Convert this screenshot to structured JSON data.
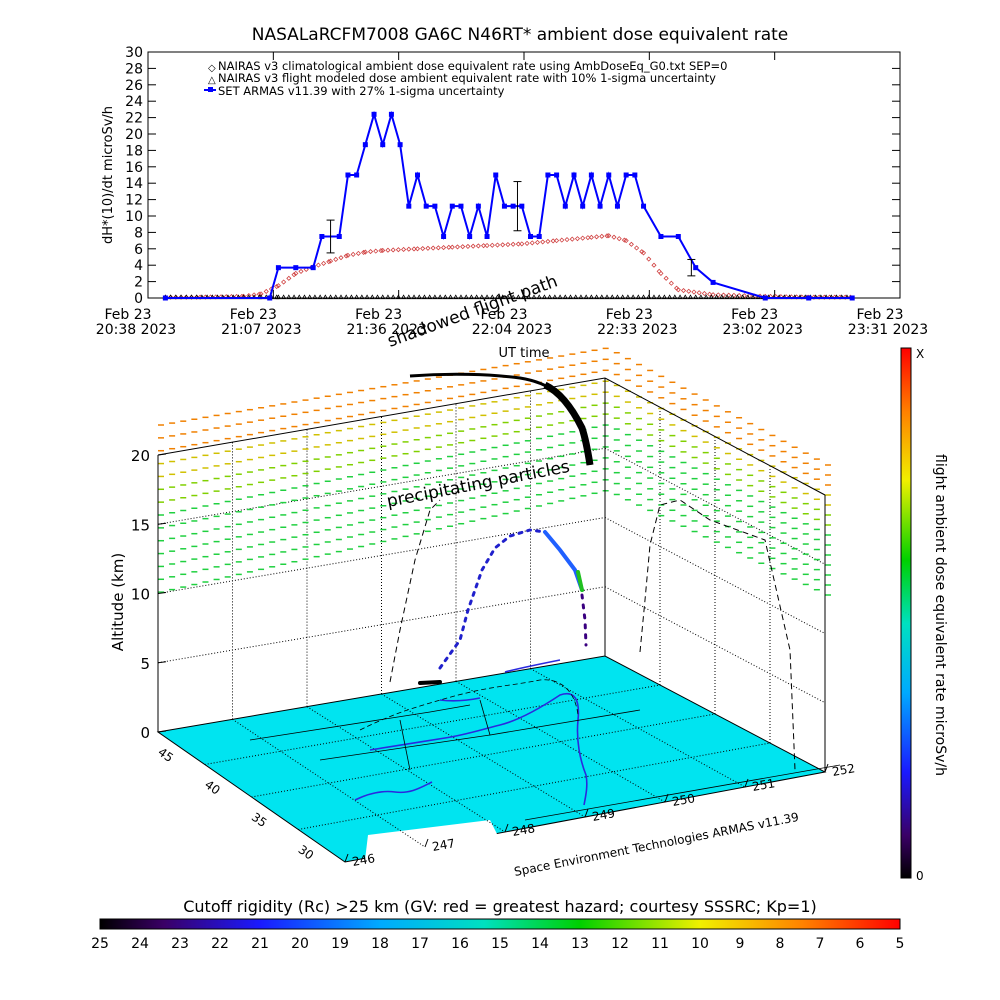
{
  "title": "NASALaRCFM7008  GA6C N46RT* ambient dose equivalent rate",
  "chart_data": [
    {
      "type": "line",
      "ylabel": "dH*(10)/dt microSv/h",
      "xlabel": "UT time",
      "ylim": [
        0,
        30
      ],
      "yticks": [
        "0",
        "2",
        "4",
        "6",
        "8",
        "10",
        "12",
        "14",
        "16",
        "18",
        "20",
        "22",
        "24",
        "26",
        "28",
        "30"
      ],
      "xticks": [
        {
          "date": "Feb 23",
          "time": "20:38 2023"
        },
        {
          "date": "Feb 23",
          "time": "21:07 2023"
        },
        {
          "date": "Feb 23",
          "time": "21:36 2023"
        },
        {
          "date": "Feb 23",
          "time": "22:04 2023"
        },
        {
          "date": "Feb 23",
          "time": "22:33 2023"
        },
        {
          "date": "Feb 23",
          "time": "23:02 2023"
        },
        {
          "date": "Feb 23",
          "time": "23:31 2023"
        }
      ],
      "legend_position": "top-left",
      "legend": [
        "NAIRAS v3 climatological ambient dose equivalent rate using AmbDoseEq_G0.txt SEP=0",
        "NAIRAS v3 flight modeled dose ambient equivalent rate with 10% 1-sigma uncertainty",
        "SET ARMAS v11.39 with 27% 1-sigma uncertainty"
      ],
      "series": [
        {
          "name": "NAIRAS v3 climatological ambient dose equivalent rate using AmbDoseEq_G0.txt SEP=0",
          "color": "#d04040",
          "x": [
            "20:42",
            "20:50",
            "21:00",
            "21:04",
            "21:08",
            "21:12",
            "21:16",
            "21:20",
            "21:24",
            "21:28",
            "21:32",
            "21:40",
            "21:48",
            "21:56",
            "22:04",
            "22:12",
            "22:20",
            "22:24",
            "22:28",
            "22:32",
            "22:36",
            "22:40",
            "22:48",
            "23:00",
            "23:10",
            "23:20"
          ],
          "y": [
            0.1,
            0.1,
            0.2,
            0.5,
            1.5,
            3.0,
            3.8,
            4.5,
            5.2,
            5.6,
            5.8,
            6.0,
            6.2,
            6.4,
            6.6,
            7.0,
            7.4,
            7.6,
            7.0,
            5.5,
            3.0,
            1.0,
            0.4,
            0.2,
            0.1,
            0.1
          ]
        },
        {
          "name": "NAIRAS v3 flight modeled dose ambient equivalent rate with 10% 1-sigma uncertainty",
          "color": "#000000",
          "x": [
            "20:42",
            "21:04",
            "21:08",
            "21:26",
            "21:56",
            "22:38",
            "23:20"
          ],
          "y": [
            0.1,
            0.1,
            0.1,
            0.1,
            0.1,
            0.1,
            0.1
          ]
        },
        {
          "name": "SET ARMAS v11.39 with 27% 1-sigma uncertainty",
          "color": "#0000ff",
          "error_bars": [
            {
              "x": "21:20",
              "y": 7.5,
              "err": 2.0
            },
            {
              "x": "22:03",
              "y": 11.2,
              "err": 3.0
            },
            {
              "x": "22:43",
              "y": 3.7,
              "err": 1.0
            }
          ],
          "x": [
            "20:42",
            "21:06",
            "21:08",
            "21:12",
            "21:16",
            "21:18",
            "21:22",
            "21:24",
            "21:26",
            "21:28",
            "21:30",
            "21:32",
            "21:34",
            "21:36",
            "21:38",
            "21:40",
            "21:42",
            "21:44",
            "21:46",
            "21:48",
            "21:50",
            "21:52",
            "21:54",
            "21:56",
            "21:58",
            "22:00",
            "22:02",
            "22:04",
            "22:06",
            "22:08",
            "22:10",
            "22:12",
            "22:14",
            "22:16",
            "22:18",
            "22:20",
            "22:22",
            "22:24",
            "22:26",
            "22:28",
            "22:30",
            "22:32",
            "22:36",
            "22:40",
            "22:44",
            "22:48",
            "23:00",
            "23:10",
            "23:20"
          ],
          "y": [
            0,
            0,
            3.7,
            3.7,
            3.7,
            7.5,
            7.5,
            15.0,
            15.0,
            18.7,
            22.4,
            18.7,
            22.4,
            18.7,
            11.2,
            15.0,
            11.2,
            11.2,
            7.5,
            11.2,
            11.2,
            7.5,
            11.2,
            7.5,
            15.0,
            11.2,
            11.2,
            11.2,
            7.5,
            7.5,
            15.0,
            15.0,
            11.2,
            15.0,
            11.2,
            15.0,
            11.2,
            15.0,
            11.2,
            15.0,
            15.0,
            11.2,
            7.5,
            7.5,
            3.7,
            1.9,
            0,
            0,
            0
          ]
        }
      ]
    },
    {
      "type": "scatter",
      "ylabel": "Altitude (km)",
      "zticks": [
        "0",
        "5",
        "10",
        "15",
        "20"
      ],
      "lat_ticks": [
        "30",
        "35",
        "40",
        "45"
      ],
      "lon_ticks": [
        "246",
        "247",
        "248",
        "249",
        "250",
        "251",
        "252"
      ],
      "annotations": [
        "shadowed flight path",
        "precipitating particles"
      ],
      "credit": "Space Environment Technologies ARMAS v11.39",
      "colorbar_right": {
        "label": "flight ambient dose equivalent rate microSv/h",
        "top": "X",
        "bottom": "0"
      },
      "colorbar_bottom": {
        "label": "Cutoff rigidity (Rc) >25 km (GV: red = greatest hazard; courtesy SSSRC; Kp=1)",
        "ticks": [
          "25",
          "24",
          "23",
          "22",
          "21",
          "20",
          "19",
          "18",
          "17",
          "16",
          "15",
          "14",
          "13",
          "12",
          "11",
          "10",
          "9",
          "8",
          "7",
          "6",
          "5"
        ]
      }
    }
  ]
}
